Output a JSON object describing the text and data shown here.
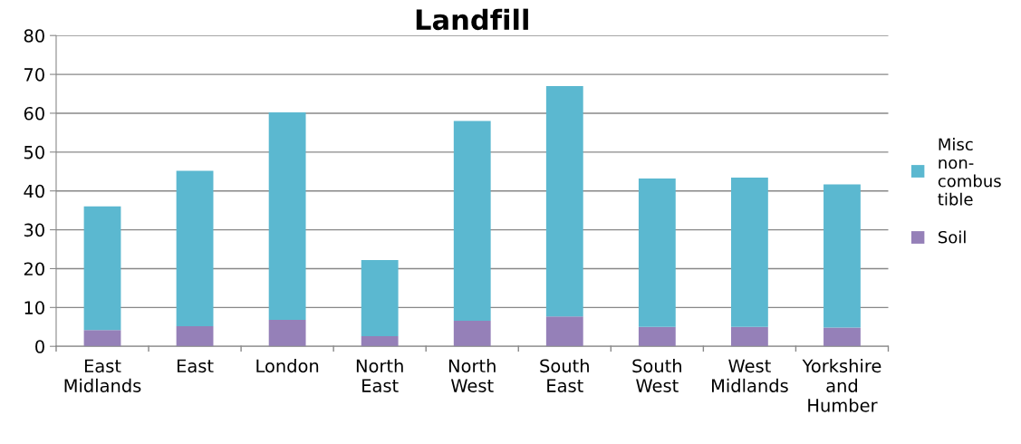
{
  "chart_data": {
    "type": "bar",
    "title": "Landfill",
    "stacked": true,
    "categories": [
      "East\nMidlands",
      "East",
      "London",
      "North\nEast",
      "North\nWest",
      "South\nEast",
      "South\nWest",
      "West\nMidlands",
      "Yorkshire\nand\nHumber"
    ],
    "series": [
      {
        "name": "Soil",
        "color": "#9580b8",
        "values": [
          4.2,
          5.2,
          6.8,
          2.6,
          6.6,
          7.7,
          5.0,
          5.0,
          4.8
        ]
      },
      {
        "name": "Misc non-combustible",
        "color": "#5bb8d0",
        "values": [
          31.8,
          40.0,
          53.4,
          19.6,
          51.4,
          59.3,
          38.2,
          38.4,
          36.9
        ]
      }
    ],
    "ylim": [
      0,
      80
    ],
    "yticks": [
      0,
      10,
      20,
      30,
      40,
      50,
      60,
      70,
      80
    ],
    "grid": "y",
    "legend": "right"
  }
}
